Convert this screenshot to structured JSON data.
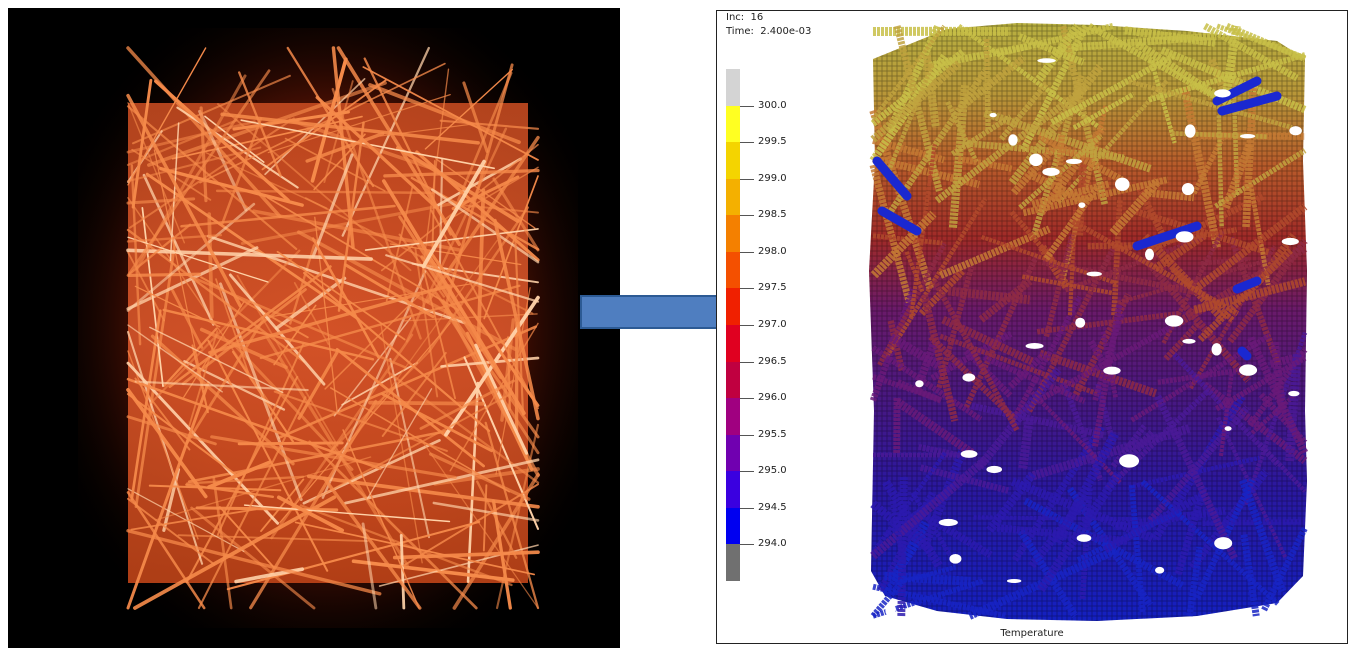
{
  "simulation": {
    "inc_label": "Inc:",
    "inc_value": "16",
    "time_label": "Time:",
    "time_value": "2.400e-03"
  },
  "legend": {
    "title": "Temperature",
    "labels": [
      "300.0",
      "299.5",
      "299.0",
      "298.5",
      "298.0",
      "297.5",
      "297.0",
      "296.5",
      "296.0",
      "295.5",
      "295.0",
      "294.5",
      "294.0"
    ],
    "colors": [
      "#d4d4d4",
      "#ffff22",
      "#f4d400",
      "#f4b000",
      "#f48000",
      "#f45000",
      "#f02000",
      "#e00020",
      "#c00040",
      "#a00080",
      "#7000b0",
      "#3a00e0",
      "#0000f0",
      "#707070"
    ]
  },
  "colors": {
    "fiber_core": "#f58a4a",
    "fiber_highlight": "#ffd2a8",
    "glow": "#8a1e08",
    "arrow_fill": "#4f7ec0",
    "arrow_stroke": "#2c5a94"
  }
}
